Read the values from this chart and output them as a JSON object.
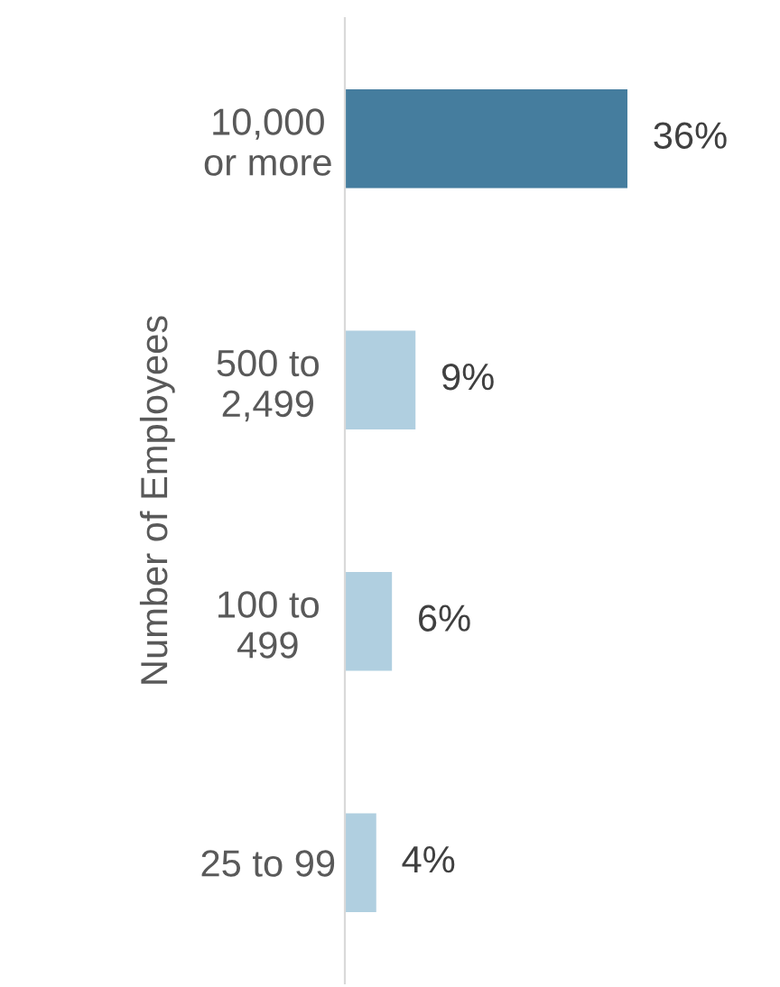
{
  "chart_data": {
    "type": "bar",
    "orientation": "horizontal",
    "ylabel": "Number of Employees",
    "categories": [
      "10,000\nor more",
      "500 to\n2,499",
      "100 to\n499",
      "25 to 99"
    ],
    "values": [
      36,
      9,
      6,
      4
    ],
    "value_labels": [
      "36%",
      "9%",
      "6%",
      "4%"
    ],
    "colors": [
      "#457d9e",
      "#b0cfe0",
      "#b0cfe0",
      "#b0cfe0"
    ],
    "tick_labels": "y",
    "grid": false,
    "legend": false
  }
}
